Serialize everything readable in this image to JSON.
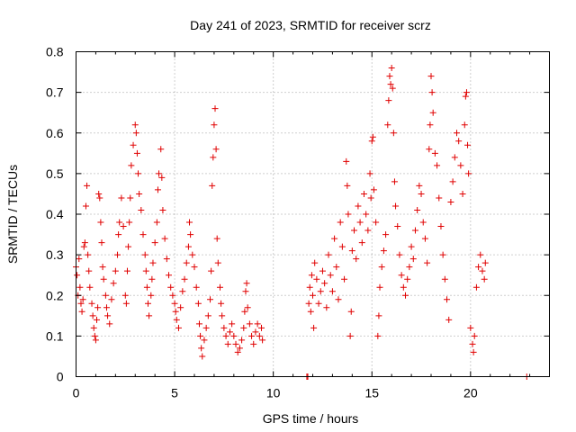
{
  "chart_data": {
    "type": "scatter",
    "title": "Day 241 of 2023, SRMTID for receiver scrz",
    "xlabel": "GPS time / hours",
    "ylabel": "SRMTID / TECUs",
    "xlim": [
      0,
      24
    ],
    "ylim": [
      0,
      0.8
    ],
    "xticks": [
      0,
      5,
      10,
      15,
      20
    ],
    "yticks": [
      0,
      0.1,
      0.2,
      0.3,
      0.4,
      0.5,
      0.6,
      0.7,
      0.8
    ],
    "xtick_labels": [
      "0",
      "5",
      "10",
      "15",
      "20"
    ],
    "ytick_labels": [
      "0",
      "0.1",
      "0.2",
      "0.3",
      "0.4",
      "0.5",
      "0.6",
      "0.7",
      "0.8"
    ],
    "grid": true,
    "marker": "plus",
    "marker_color": "#e00000",
    "series": [
      {
        "name": "SRMTID",
        "points": [
          [
            0.0,
            0.27
          ],
          [
            0.05,
            0.25
          ],
          [
            0.1,
            0.2
          ],
          [
            0.15,
            0.29
          ],
          [
            0.2,
            0.22
          ],
          [
            0.25,
            0.18
          ],
          [
            0.3,
            0.16
          ],
          [
            0.35,
            0.19
          ],
          [
            0.4,
            0.32
          ],
          [
            0.45,
            0.33
          ],
          [
            0.5,
            0.42
          ],
          [
            0.55,
            0.47
          ],
          [
            0.6,
            0.3
          ],
          [
            0.65,
            0.26
          ],
          [
            0.7,
            0.22
          ],
          [
            0.8,
            0.18
          ],
          [
            0.85,
            0.15
          ],
          [
            0.9,
            0.12
          ],
          [
            0.95,
            0.1
          ],
          [
            1.0,
            0.09
          ],
          [
            1.05,
            0.14
          ],
          [
            1.1,
            0.17
          ],
          [
            1.15,
            0.45
          ],
          [
            1.2,
            0.44
          ],
          [
            1.25,
            0.38
          ],
          [
            1.3,
            0.33
          ],
          [
            1.35,
            0.27
          ],
          [
            1.4,
            0.24
          ],
          [
            1.5,
            0.2
          ],
          [
            1.55,
            0.17
          ],
          [
            1.6,
            0.15
          ],
          [
            1.7,
            0.13
          ],
          [
            1.8,
            0.19
          ],
          [
            1.9,
            0.23
          ],
          [
            2.0,
            0.26
          ],
          [
            2.1,
            0.3
          ],
          [
            2.15,
            0.35
          ],
          [
            2.2,
            0.38
          ],
          [
            2.3,
            0.44
          ],
          [
            2.4,
            0.37
          ],
          [
            2.5,
            0.2
          ],
          [
            2.55,
            0.18
          ],
          [
            2.6,
            0.26
          ],
          [
            2.65,
            0.32
          ],
          [
            2.7,
            0.38
          ],
          [
            2.75,
            0.44
          ],
          [
            2.8,
            0.52
          ],
          [
            2.9,
            0.57
          ],
          [
            3.0,
            0.62
          ],
          [
            3.05,
            0.6
          ],
          [
            3.1,
            0.55
          ],
          [
            3.15,
            0.5
          ],
          [
            3.2,
            0.45
          ],
          [
            3.3,
            0.41
          ],
          [
            3.4,
            0.35
          ],
          [
            3.5,
            0.3
          ],
          [
            3.55,
            0.26
          ],
          [
            3.6,
            0.22
          ],
          [
            3.65,
            0.18
          ],
          [
            3.7,
            0.15
          ],
          [
            3.8,
            0.2
          ],
          [
            3.85,
            0.24
          ],
          [
            3.9,
            0.28
          ],
          [
            4.0,
            0.33
          ],
          [
            4.1,
            0.38
          ],
          [
            4.15,
            0.46
          ],
          [
            4.2,
            0.5
          ],
          [
            4.3,
            0.56
          ],
          [
            4.35,
            0.49
          ],
          [
            4.4,
            0.41
          ],
          [
            4.5,
            0.34
          ],
          [
            4.6,
            0.29
          ],
          [
            4.7,
            0.25
          ],
          [
            4.8,
            0.22
          ],
          [
            4.9,
            0.2
          ],
          [
            5.0,
            0.18
          ],
          [
            5.05,
            0.16
          ],
          [
            5.1,
            0.14
          ],
          [
            5.2,
            0.12
          ],
          [
            5.3,
            0.17
          ],
          [
            5.4,
            0.21
          ],
          [
            5.5,
            0.24
          ],
          [
            5.6,
            0.28
          ],
          [
            5.7,
            0.32
          ],
          [
            5.75,
            0.38
          ],
          [
            5.8,
            0.35
          ],
          [
            5.9,
            0.3
          ],
          [
            6.0,
            0.27
          ],
          [
            6.1,
            0.22
          ],
          [
            6.2,
            0.18
          ],
          [
            6.25,
            0.13
          ],
          [
            6.3,
            0.1
          ],
          [
            6.35,
            0.07
          ],
          [
            6.4,
            0.05
          ],
          [
            6.5,
            0.09
          ],
          [
            6.6,
            0.12
          ],
          [
            6.7,
            0.15
          ],
          [
            6.8,
            0.19
          ],
          [
            6.85,
            0.26
          ],
          [
            6.9,
            0.47
          ],
          [
            6.95,
            0.54
          ],
          [
            7.0,
            0.62
          ],
          [
            7.05,
            0.66
          ],
          [
            7.1,
            0.56
          ],
          [
            7.15,
            0.34
          ],
          [
            7.2,
            0.28
          ],
          [
            7.3,
            0.22
          ],
          [
            7.35,
            0.18
          ],
          [
            7.4,
            0.15
          ],
          [
            7.5,
            0.12
          ],
          [
            7.6,
            0.1
          ],
          [
            7.7,
            0.08
          ],
          [
            7.8,
            0.11
          ],
          [
            7.9,
            0.13
          ],
          [
            8.0,
            0.1
          ],
          [
            8.1,
            0.08
          ],
          [
            8.2,
            0.06
          ],
          [
            8.3,
            0.07
          ],
          [
            8.4,
            0.09
          ],
          [
            8.5,
            0.12
          ],
          [
            8.55,
            0.16
          ],
          [
            8.6,
            0.21
          ],
          [
            8.65,
            0.23
          ],
          [
            8.7,
            0.17
          ],
          [
            8.8,
            0.13
          ],
          [
            8.9,
            0.1
          ],
          [
            9.0,
            0.08
          ],
          [
            9.1,
            0.11
          ],
          [
            9.2,
            0.13
          ],
          [
            9.3,
            0.1
          ],
          [
            9.4,
            0.12
          ],
          [
            9.45,
            0.09
          ],
          [
            11.7,
            0.0
          ],
          [
            11.75,
            0.0
          ],
          [
            11.8,
            0.18
          ],
          [
            11.85,
            0.22
          ],
          [
            11.9,
            0.16
          ],
          [
            11.95,
            0.25
          ],
          [
            12.0,
            0.2
          ],
          [
            12.05,
            0.12
          ],
          [
            12.1,
            0.28
          ],
          [
            12.2,
            0.24
          ],
          [
            12.3,
            0.18
          ],
          [
            12.4,
            0.21
          ],
          [
            12.5,
            0.26
          ],
          [
            12.6,
            0.23
          ],
          [
            12.7,
            0.17
          ],
          [
            12.8,
            0.3
          ],
          [
            12.9,
            0.25
          ],
          [
            13.0,
            0.21
          ],
          [
            13.1,
            0.34
          ],
          [
            13.2,
            0.27
          ],
          [
            13.3,
            0.19
          ],
          [
            13.4,
            0.38
          ],
          [
            13.5,
            0.32
          ],
          [
            13.6,
            0.24
          ],
          [
            13.7,
            0.53
          ],
          [
            13.75,
            0.47
          ],
          [
            13.8,
            0.4
          ],
          [
            13.9,
            0.1
          ],
          [
            13.95,
            0.16
          ],
          [
            14.0,
            0.31
          ],
          [
            14.1,
            0.36
          ],
          [
            14.2,
            0.29
          ],
          [
            14.3,
            0.42
          ],
          [
            14.4,
            0.38
          ],
          [
            14.5,
            0.33
          ],
          [
            14.6,
            0.45
          ],
          [
            14.7,
            0.4
          ],
          [
            14.8,
            0.36
          ],
          [
            14.9,
            0.5
          ],
          [
            14.95,
            0.44
          ],
          [
            15.0,
            0.58
          ],
          [
            15.05,
            0.59
          ],
          [
            15.1,
            0.46
          ],
          [
            15.2,
            0.38
          ],
          [
            15.3,
            0.1
          ],
          [
            15.35,
            0.15
          ],
          [
            15.4,
            0.22
          ],
          [
            15.5,
            0.27
          ],
          [
            15.6,
            0.31
          ],
          [
            15.7,
            0.35
          ],
          [
            15.8,
            0.62
          ],
          [
            15.85,
            0.68
          ],
          [
            15.9,
            0.74
          ],
          [
            15.95,
            0.72
          ],
          [
            16.0,
            0.76
          ],
          [
            16.05,
            0.71
          ],
          [
            16.1,
            0.6
          ],
          [
            16.15,
            0.48
          ],
          [
            16.2,
            0.42
          ],
          [
            16.3,
            0.37
          ],
          [
            16.4,
            0.3
          ],
          [
            16.5,
            0.25
          ],
          [
            16.6,
            0.22
          ],
          [
            16.7,
            0.2
          ],
          [
            16.8,
            0.24
          ],
          [
            16.9,
            0.27
          ],
          [
            17.0,
            0.32
          ],
          [
            17.1,
            0.29
          ],
          [
            17.2,
            0.36
          ],
          [
            17.3,
            0.41
          ],
          [
            17.4,
            0.47
          ],
          [
            17.5,
            0.45
          ],
          [
            17.6,
            0.38
          ],
          [
            17.7,
            0.34
          ],
          [
            17.8,
            0.28
          ],
          [
            17.9,
            0.56
          ],
          [
            17.95,
            0.62
          ],
          [
            18.0,
            0.74
          ],
          [
            18.05,
            0.7
          ],
          [
            18.1,
            0.65
          ],
          [
            18.2,
            0.55
          ],
          [
            18.3,
            0.52
          ],
          [
            18.4,
            0.44
          ],
          [
            18.5,
            0.37
          ],
          [
            18.6,
            0.3
          ],
          [
            18.7,
            0.24
          ],
          [
            18.8,
            0.19
          ],
          [
            18.9,
            0.14
          ],
          [
            19.0,
            0.43
          ],
          [
            19.1,
            0.48
          ],
          [
            19.2,
            0.54
          ],
          [
            19.3,
            0.6
          ],
          [
            19.4,
            0.58
          ],
          [
            19.5,
            0.52
          ],
          [
            19.6,
            0.45
          ],
          [
            19.7,
            0.62
          ],
          [
            19.75,
            0.69
          ],
          [
            19.8,
            0.7
          ],
          [
            19.85,
            0.57
          ],
          [
            19.9,
            0.5
          ],
          [
            20.0,
            0.12
          ],
          [
            20.1,
            0.08
          ],
          [
            20.15,
            0.06
          ],
          [
            20.2,
            0.1
          ],
          [
            20.3,
            0.22
          ],
          [
            20.4,
            0.27
          ],
          [
            20.5,
            0.3
          ],
          [
            20.6,
            0.26
          ],
          [
            20.7,
            0.24
          ],
          [
            20.75,
            0.28
          ],
          [
            22.85,
            0.0
          ]
        ]
      }
    ]
  }
}
